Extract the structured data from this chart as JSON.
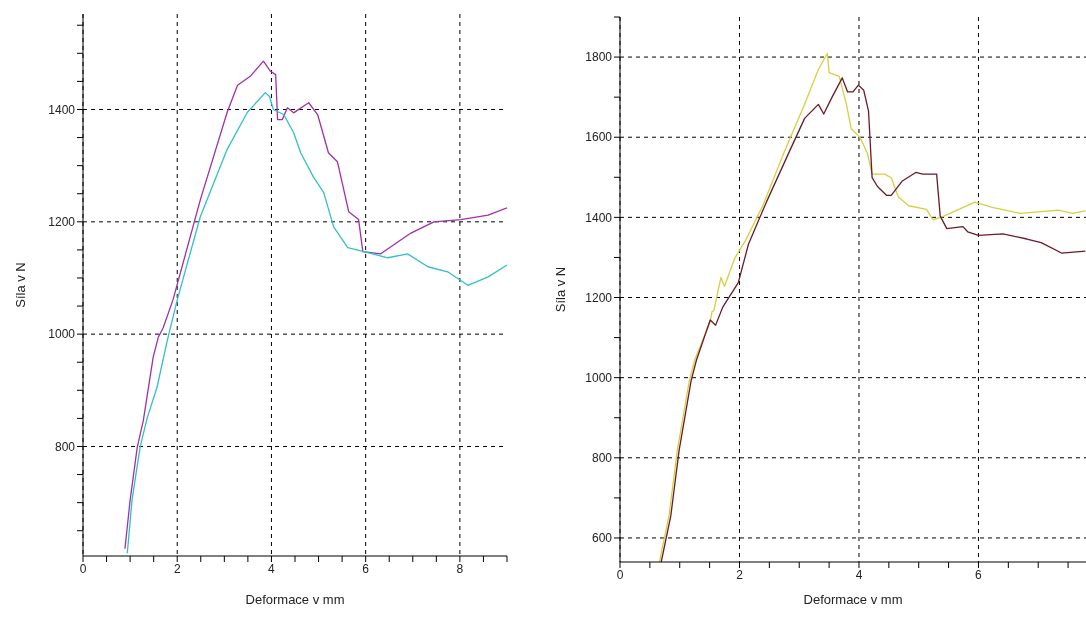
{
  "chart_data": [
    {
      "type": "line",
      "xlabel": "Deformace v mm",
      "ylabel": "Síla v N",
      "xlim": [
        0,
        9
      ],
      "ylim": [
        605,
        1570
      ],
      "grid": true,
      "xticks": [
        0,
        {
          "value": 0.5,
          "label": null
        },
        {
          "value": 1,
          "label": null
        },
        {
          "value": 1.5,
          "label": null
        },
        2,
        {
          "value": 2.5,
          "label": null
        },
        {
          "value": 3,
          "label": null
        },
        {
          "value": 3.5,
          "label": null
        },
        4,
        {
          "value": 4.5,
          "label": null
        },
        {
          "value": 5,
          "label": null
        },
        {
          "value": 5.5,
          "label": null
        },
        6,
        {
          "value": 6.5,
          "label": null
        },
        {
          "value": 7,
          "label": null
        },
        {
          "value": 7.5,
          "label": null
        },
        8,
        {
          "value": 8.5,
          "label": null
        },
        {
          "value": 9,
          "label": null
        }
      ],
      "yticks": [
        {
          "value": 650,
          "label": null
        },
        {
          "value": 700,
          "label": null
        },
        {
          "value": 750,
          "label": null
        },
        800,
        {
          "value": 850,
          "label": null
        },
        {
          "value": 900,
          "label": null
        },
        {
          "value": 950,
          "label": null
        },
        1000,
        {
          "value": 1050,
          "label": null
        },
        {
          "value": 1100,
          "label": null
        },
        {
          "value": 1150,
          "label": null
        },
        1200,
        {
          "value": 1250,
          "label": null
        },
        {
          "value": 1300,
          "label": null
        },
        {
          "value": 1350,
          "label": null
        },
        1400,
        {
          "value": 1450,
          "label": null
        },
        {
          "value": 1500,
          "label": null
        },
        {
          "value": 1550,
          "label": null
        }
      ],
      "series": [
        {
          "color": "#a030a8",
          "x": [
            0.89,
            1.0,
            1.15,
            1.28,
            1.49,
            1.6,
            1.7,
            1.91,
            2.49,
            3.06,
            3.28,
            3.55,
            3.83,
            3.98,
            4.09,
            4.13,
            4.23,
            4.34,
            4.47,
            4.79,
            4.98,
            5.21,
            5.4,
            5.64,
            5.85,
            5.94,
            6.32,
            6.96,
            7.45,
            8.02,
            8.6,
            9.0
          ],
          "values": [
            618,
            704,
            798,
            846,
            959,
            995,
            1011,
            1061,
            1239,
            1395,
            1443,
            1459,
            1486,
            1468,
            1462,
            1382,
            1382,
            1403,
            1394,
            1412,
            1391,
            1323,
            1307,
            1218,
            1204,
            1147,
            1143,
            1180,
            1200,
            1204,
            1212,
            1225
          ]
        },
        {
          "color": "#30c0c8",
          "x": [
            0.94,
            1.04,
            1.21,
            1.36,
            1.57,
            1.79,
            2.0,
            2.49,
            3.06,
            3.49,
            3.87,
            3.96,
            4.04,
            4.26,
            4.47,
            4.62,
            4.89,
            5.11,
            5.32,
            5.62,
            5.96,
            6.47,
            6.89,
            7.32,
            7.74,
            8.17,
            8.6,
            9.0
          ],
          "values": [
            610,
            704,
            798,
            850,
            905,
            989,
            1061,
            1209,
            1329,
            1395,
            1430,
            1423,
            1400,
            1391,
            1359,
            1323,
            1280,
            1252,
            1191,
            1154,
            1147,
            1136,
            1143,
            1120,
            1111,
            1087,
            1102,
            1123
          ]
        }
      ]
    },
    {
      "type": "line",
      "xlabel": "Deformace v mm",
      "ylabel": "Síla v N",
      "xlim": [
        0,
        7.8
      ],
      "ylim": [
        540,
        1900
      ],
      "grid": true,
      "xticks": [
        0,
        {
          "value": 0.5,
          "label": null
        },
        {
          "value": 1,
          "label": null
        },
        {
          "value": 1.5,
          "label": null
        },
        2,
        {
          "value": 2.5,
          "label": null
        },
        {
          "value": 3,
          "label": null
        },
        {
          "value": 3.5,
          "label": null
        },
        4,
        {
          "value": 4.5,
          "label": null
        },
        {
          "value": 5,
          "label": null
        },
        {
          "value": 5.5,
          "label": null
        },
        6,
        {
          "value": 6.5,
          "label": null
        },
        {
          "value": 7,
          "label": null
        },
        {
          "value": 7.5,
          "label": null
        }
      ],
      "yticks": [
        600,
        {
          "value": 700,
          "label": null
        },
        800,
        {
          "value": 900,
          "label": null
        },
        1000,
        {
          "value": 1100,
          "label": null
        },
        1200,
        {
          "value": 1300,
          "label": null
        },
        1400,
        {
          "value": 1500,
          "label": null
        },
        1600,
        {
          "value": 1700,
          "label": null
        },
        1800,
        {
          "value": 1900,
          "label": null
        }
      ],
      "series": [
        {
          "color": "#d4d040",
          "x": [
            0.66,
            0.82,
            0.96,
            1.16,
            1.25,
            1.51,
            1.54,
            1.57,
            1.69,
            1.75,
            1.92,
            2.1,
            2.39,
            2.74,
            3.09,
            3.32,
            3.47,
            3.5,
            3.67,
            3.79,
            3.87,
            4.02,
            4.14,
            4.22,
            4.43,
            4.54,
            4.66,
            4.83,
            5.13,
            5.24,
            5.42,
            5.94,
            6.23,
            6.7,
            7.34,
            7.57,
            7.79
          ],
          "values": [
            540,
            655,
            819,
            992,
            1044,
            1139,
            1165,
            1167,
            1250,
            1228,
            1298,
            1342,
            1429,
            1560,
            1682,
            1769,
            1809,
            1761,
            1752,
            1682,
            1621,
            1599,
            1560,
            1508,
            1508,
            1499,
            1451,
            1429,
            1420,
            1394,
            1403,
            1438,
            1425,
            1410,
            1418,
            1410,
            1416
          ]
        },
        {
          "color": "#6a1a2a",
          "x": [
            0.69,
            0.85,
            0.99,
            1.19,
            1.28,
            1.51,
            1.6,
            1.72,
            1.98,
            2.15,
            2.45,
            2.85,
            3.09,
            3.32,
            3.41,
            3.55,
            3.72,
            3.81,
            3.9,
            3.99,
            4.08,
            4.16,
            4.22,
            4.31,
            4.46,
            4.54,
            4.72,
            4.95,
            5.07,
            5.3,
            5.36,
            5.47,
            5.74,
            5.82,
            6.0,
            6.41,
            6.81,
            7.05,
            7.39,
            7.79
          ],
          "values": [
            540,
            655,
            819,
            992,
            1044,
            1144,
            1131,
            1176,
            1237,
            1333,
            1438,
            1569,
            1647,
            1682,
            1658,
            1700,
            1748,
            1713,
            1713,
            1730,
            1717,
            1665,
            1499,
            1477,
            1455,
            1455,
            1490,
            1512,
            1508,
            1508,
            1403,
            1372,
            1377,
            1364,
            1355,
            1359,
            1346,
            1337,
            1311,
            1316
          ]
        }
      ]
    }
  ]
}
